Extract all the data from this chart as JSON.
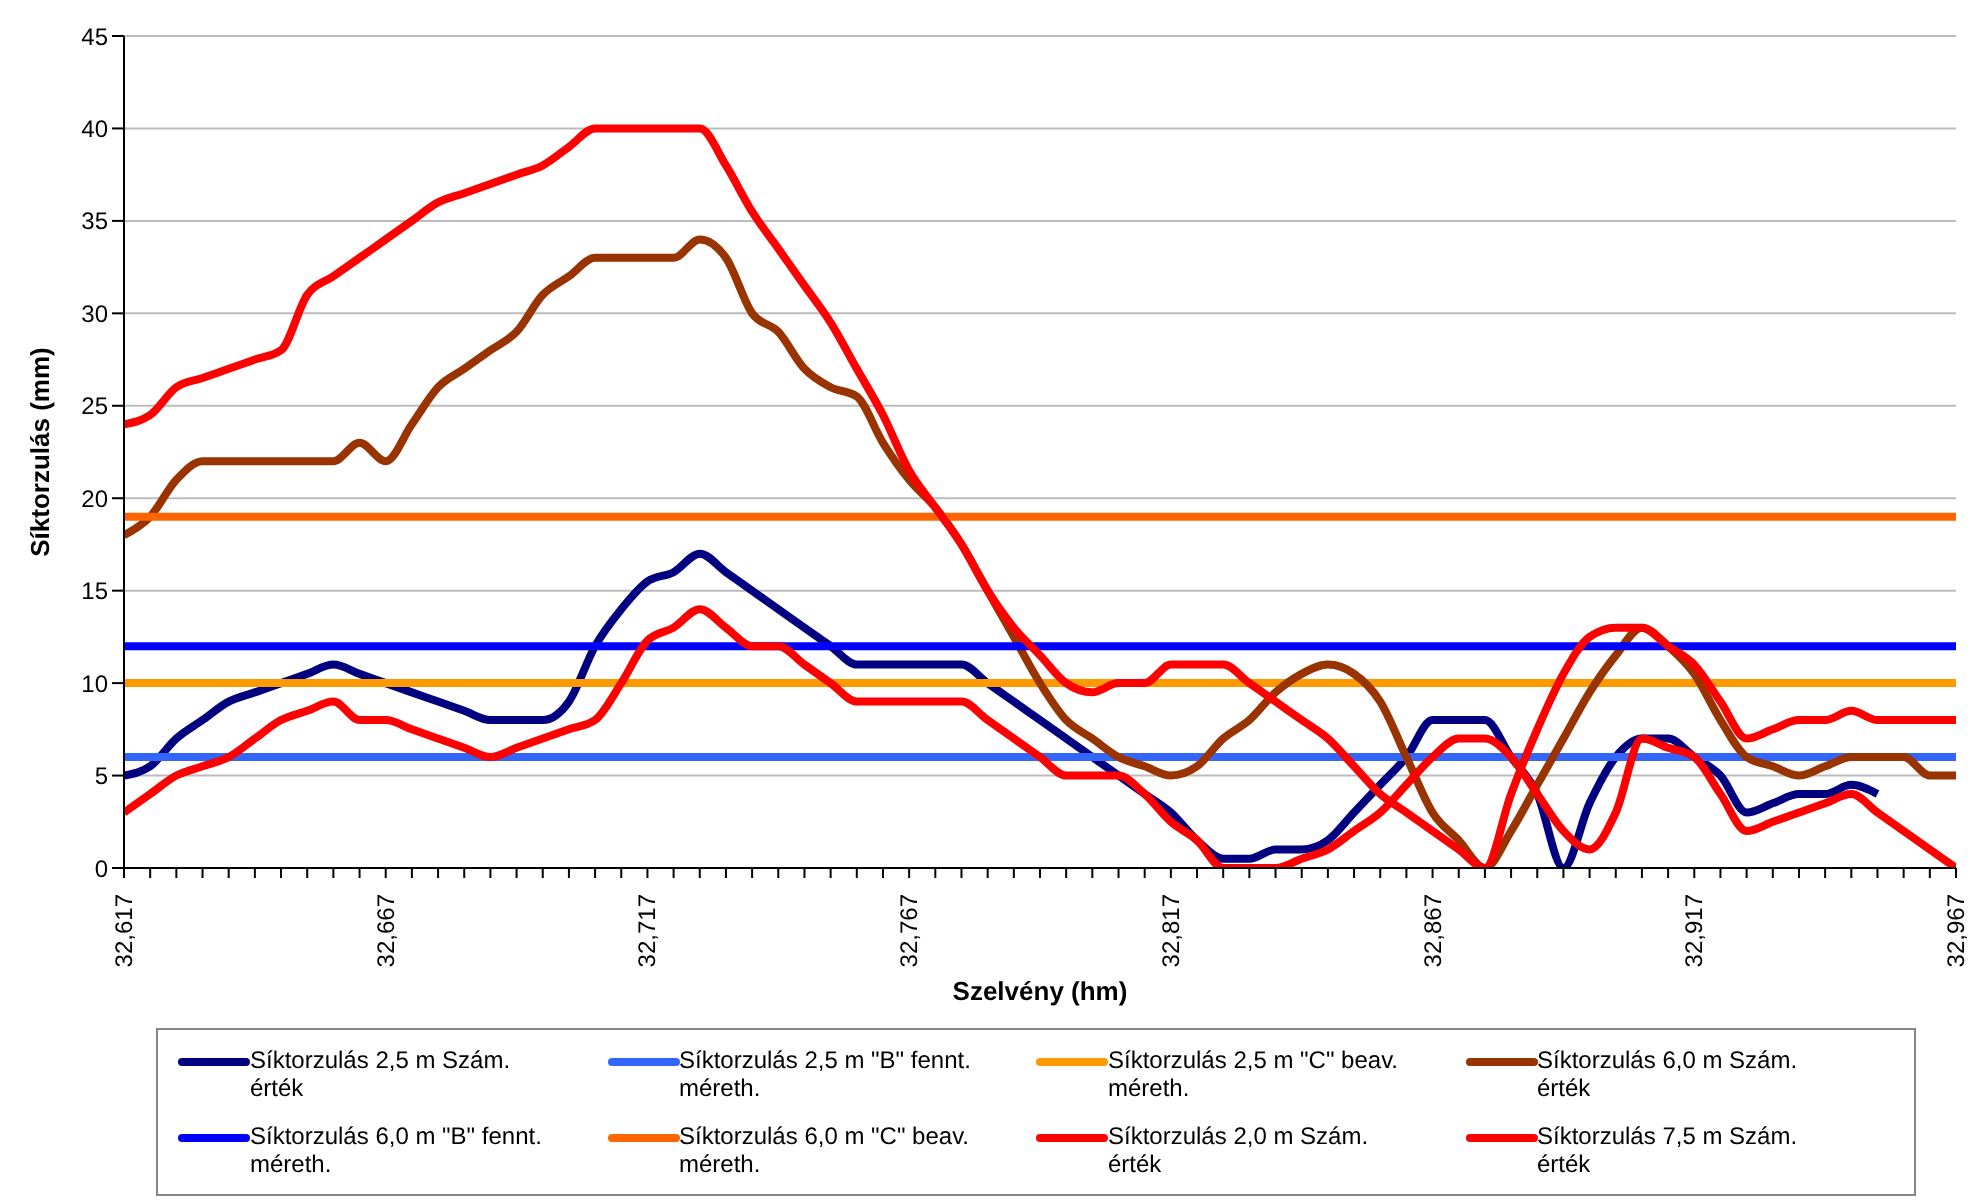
{
  "chart_data": {
    "type": "line",
    "xlabel": "Szelvény (hm)",
    "ylabel": "Síktorzulás (mm)",
    "categories": [
      "32,617",
      null,
      null,
      null,
      null,
      null,
      null,
      null,
      null,
      null,
      "32,667",
      null,
      null,
      null,
      null,
      null,
      null,
      null,
      null,
      null,
      "32,717",
      null,
      null,
      null,
      null,
      null,
      null,
      null,
      null,
      null,
      "32,767",
      null,
      null,
      null,
      null,
      null,
      null,
      null,
      null,
      null,
      "32,817",
      null,
      null,
      null,
      null,
      null,
      null,
      null,
      null,
      null,
      "32,867",
      null,
      null,
      null,
      null,
      null,
      null,
      null,
      null,
      null,
      "32,917",
      null,
      null,
      null,
      null,
      null,
      null,
      null,
      null,
      null,
      "32,967"
    ],
    "ylim": [
      0,
      45
    ],
    "yticks": [
      0,
      5,
      10,
      15,
      20,
      25,
      30,
      35,
      40,
      45
    ],
    "grid": "y",
    "legend": "bottom",
    "marker": "none",
    "line_style": "solid",
    "series": [
      {
        "name": "Síktorzulás 2,5 m Szám. érték",
        "color": "#000080",
        "values": [
          5,
          5.5,
          7,
          8,
          9,
          9.5,
          10,
          10.5,
          11,
          10.5,
          10,
          9.5,
          9,
          8.5,
          8,
          8,
          8,
          9,
          12,
          14,
          15.5,
          16,
          17,
          16,
          15,
          14,
          13,
          12,
          11,
          11,
          11,
          11,
          11,
          10,
          9,
          8,
          7,
          6,
          5,
          4,
          3,
          1.5,
          0.5,
          0.5,
          1,
          1,
          1.5,
          3,
          4.5,
          6,
          8,
          8,
          8,
          6,
          4,
          0,
          3.5,
          6,
          7,
          7,
          6,
          5,
          3,
          3.5,
          4,
          4,
          4.5,
          4,
          null,
          null,
          null
        ]
      },
      {
        "name": "Síktorzulás 2,5 m \"B\" fennt. méreth.",
        "color": "#3366ff",
        "values": [
          6,
          6,
          6,
          6,
          6,
          6,
          6,
          6,
          6,
          6,
          6,
          6,
          6,
          6,
          6,
          6,
          6,
          6,
          6,
          6,
          6,
          6,
          6,
          6,
          6,
          6,
          6,
          6,
          6,
          6,
          6,
          6,
          6,
          6,
          6,
          6,
          6,
          6,
          6,
          6,
          6,
          6,
          6,
          6,
          6,
          6,
          6,
          6,
          6,
          6,
          6,
          6,
          6,
          6,
          6,
          6,
          6,
          6,
          6,
          6,
          6,
          6,
          6,
          6,
          6,
          6,
          6,
          6,
          6,
          6,
          6
        ]
      },
      {
        "name": "Síktorzulás 2,5 m \"C\" beav. méreth.",
        "color": "#ff9900",
        "values": [
          10,
          10,
          10,
          10,
          10,
          10,
          10,
          10,
          10,
          10,
          10,
          10,
          10,
          10,
          10,
          10,
          10,
          10,
          10,
          10,
          10,
          10,
          10,
          10,
          10,
          10,
          10,
          10,
          10,
          10,
          10,
          10,
          10,
          10,
          10,
          10,
          10,
          10,
          10,
          10,
          10,
          10,
          10,
          10,
          10,
          10,
          10,
          10,
          10,
          10,
          10,
          10,
          10,
          10,
          10,
          10,
          10,
          10,
          10,
          10,
          10,
          10,
          10,
          10,
          10,
          10,
          10,
          10,
          10,
          10,
          10
        ]
      },
      {
        "name": "Síktorzulás 6,0 m Szám. érték",
        "color": "#993300",
        "values": [
          18,
          19,
          21,
          22,
          22,
          22,
          22,
          22,
          22,
          23,
          22,
          24,
          26,
          27,
          28,
          29,
          31,
          32,
          33,
          33,
          33,
          33,
          34,
          33,
          30,
          29,
          27,
          26,
          25.5,
          23,
          21,
          19.5,
          17.5,
          15,
          12.5,
          10,
          8,
          7,
          6,
          5.5,
          5,
          5.5,
          7,
          8,
          9.5,
          10.5,
          11,
          10.5,
          9,
          6,
          3,
          1.5,
          0,
          2,
          4.5,
          7,
          9.5,
          11.5,
          13,
          12,
          10.5,
          8,
          6,
          5.5,
          5,
          5.5,
          6,
          6,
          6,
          5,
          5
        ]
      },
      {
        "name": "Síktorzulás 6,0 m \"B\" fennt. méreth.",
        "color": "#0000ff",
        "values": [
          12,
          12,
          12,
          12,
          12,
          12,
          12,
          12,
          12,
          12,
          12,
          12,
          12,
          12,
          12,
          12,
          12,
          12,
          12,
          12,
          12,
          12,
          12,
          12,
          12,
          12,
          12,
          12,
          12,
          12,
          12,
          12,
          12,
          12,
          12,
          12,
          12,
          12,
          12,
          12,
          12,
          12,
          12,
          12,
          12,
          12,
          12,
          12,
          12,
          12,
          12,
          12,
          12,
          12,
          12,
          12,
          12,
          12,
          12,
          12,
          12,
          12,
          12,
          12,
          12,
          12,
          12,
          12,
          12,
          12,
          12
        ]
      },
      {
        "name": "Síktorzulás 6,0 m \"C\" beav. méreth.",
        "color": "#ff6600",
        "values": [
          19,
          19,
          19,
          19,
          19,
          19,
          19,
          19,
          19,
          19,
          19,
          19,
          19,
          19,
          19,
          19,
          19,
          19,
          19,
          19,
          19,
          19,
          19,
          19,
          19,
          19,
          19,
          19,
          19,
          19,
          19,
          19,
          19,
          19,
          19,
          19,
          19,
          19,
          19,
          19,
          19,
          19,
          19,
          19,
          19,
          19,
          19,
          19,
          19,
          19,
          19,
          19,
          19,
          19,
          19,
          19,
          19,
          19,
          19,
          19,
          19,
          19,
          19,
          19,
          19,
          19,
          19,
          19,
          19,
          19,
          19
        ]
      },
      {
        "name": "Síktorzulás 2,0 m Szám. érték",
        "color": "#ff0000",
        "values": [
          3,
          4,
          5,
          5.5,
          6,
          7,
          8,
          8.5,
          9,
          8,
          8,
          7.5,
          7,
          6.5,
          6,
          6.5,
          7,
          7.5,
          8,
          10,
          12.3,
          13,
          14,
          13,
          12,
          12,
          11,
          10,
          9,
          9,
          9,
          9,
          9,
          8,
          7,
          6,
          5,
          5,
          5,
          4,
          2.5,
          1.5,
          0,
          0,
          0,
          0.5,
          1,
          2,
          3,
          4.5,
          6,
          7,
          7,
          6,
          4,
          2,
          1,
          3,
          7,
          6.5,
          6,
          4,
          2,
          2.5,
          3,
          3.5,
          4,
          3,
          2,
          1,
          0
        ]
      },
      {
        "name": "Síktorzulás 7,5 m Szám. érték",
        "color": "#ff0000",
        "values": [
          24,
          24.5,
          26,
          26.5,
          27,
          27.5,
          28,
          31,
          32,
          33,
          34,
          35,
          36,
          36.5,
          37,
          37.5,
          38,
          39,
          40,
          40,
          40,
          40,
          40,
          38,
          35.5,
          33.5,
          31.5,
          29.5,
          27,
          24.5,
          21.5,
          19.5,
          17.5,
          15,
          13,
          11.5,
          10,
          9.5,
          10,
          10,
          11,
          11,
          11,
          10,
          9,
          8,
          7,
          5.5,
          4,
          3,
          2,
          1,
          0,
          4,
          7.5,
          10.5,
          12.5,
          13,
          13,
          12,
          11,
          9,
          7,
          7.5,
          8,
          8,
          8.5,
          8,
          8,
          8,
          8
        ]
      }
    ]
  }
}
